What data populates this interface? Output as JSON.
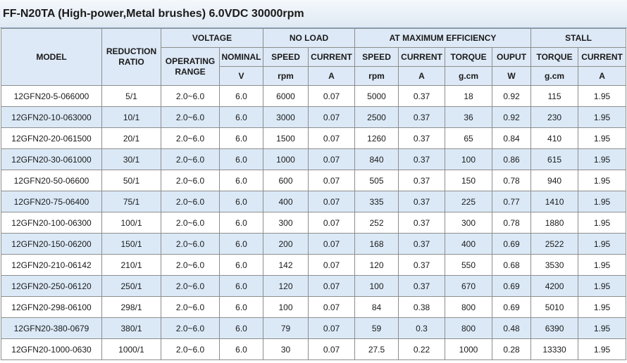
{
  "title": "FF-N20TA (High-power,Metal brushes)  6.0VDC  30000rpm",
  "header": {
    "model": "MODEL",
    "reduction_ratio": "REDUCTION RATIO",
    "voltage": "VOLTAGE",
    "no_load": "NO LOAD",
    "at_max_eff": "AT MAXIMUM EFFICIENCY",
    "stall": "STALL",
    "operating_range": "OPERATING RANGE",
    "nominal": "NOMINAL",
    "speed": "SPEED",
    "current": "CURRENT",
    "torque": "TORQUE",
    "output": "OUPUT",
    "unit_v": "V",
    "unit_rpm": "rpm",
    "unit_a": "A",
    "unit_gcm": "g.cm",
    "unit_w": "W"
  },
  "rows": [
    {
      "model": "12GFN20-5-066000",
      "ratio": "5/1",
      "range": "2.0~6.0",
      "nominal": "6.0",
      "nl_speed": "6000",
      "nl_current": "0.07",
      "me_speed": "5000",
      "me_current": "0.37",
      "me_torque": "18",
      "me_output": "0.92",
      "st_torque": "115",
      "st_current": "1.95"
    },
    {
      "model": "12GFN20-10-063000",
      "ratio": "10/1",
      "range": "2.0~6.0",
      "nominal": "6.0",
      "nl_speed": "3000",
      "nl_current": "0.07",
      "me_speed": "2500",
      "me_current": "0.37",
      "me_torque": "36",
      "me_output": "0.92",
      "st_torque": "230",
      "st_current": "1.95"
    },
    {
      "model": "12GFN20-20-061500",
      "ratio": "20/1",
      "range": "2.0~6.0",
      "nominal": "6.0",
      "nl_speed": "1500",
      "nl_current": "0.07",
      "me_speed": "1260",
      "me_current": "0.37",
      "me_torque": "65",
      "me_output": "0.84",
      "st_torque": "410",
      "st_current": "1.95"
    },
    {
      "model": "12GFN20-30-061000",
      "ratio": "30/1",
      "range": "2.0~6.0",
      "nominal": "6.0",
      "nl_speed": "1000",
      "nl_current": "0.07",
      "me_speed": "840",
      "me_current": "0.37",
      "me_torque": "100",
      "me_output": "0.86",
      "st_torque": "615",
      "st_current": "1.95"
    },
    {
      "model": "12GFN20-50-06600",
      "ratio": "50/1",
      "range": "2.0~6.0",
      "nominal": "6.0",
      "nl_speed": "600",
      "nl_current": "0.07",
      "me_speed": "505",
      "me_current": "0.37",
      "me_torque": "150",
      "me_output": "0.78",
      "st_torque": "940",
      "st_current": "1.95"
    },
    {
      "model": "12GFN20-75-06400",
      "ratio": "75/1",
      "range": "2.0~6.0",
      "nominal": "6.0",
      "nl_speed": "400",
      "nl_current": "0.07",
      "me_speed": "335",
      "me_current": "0.37",
      "me_torque": "225",
      "me_output": "0.77",
      "st_torque": "1410",
      "st_current": "1.95"
    },
    {
      "model": "12GFN20-100-06300",
      "ratio": "100/1",
      "range": "2.0~6.0",
      "nominal": "6.0",
      "nl_speed": "300",
      "nl_current": "0.07",
      "me_speed": "252",
      "me_current": "0.37",
      "me_torque": "300",
      "me_output": "0.78",
      "st_torque": "1880",
      "st_current": "1.95"
    },
    {
      "model": "12GFN20-150-06200",
      "ratio": "150/1",
      "range": "2.0~6.0",
      "nominal": "6.0",
      "nl_speed": "200",
      "nl_current": "0.07",
      "me_speed": "168",
      "me_current": "0.37",
      "me_torque": "400",
      "me_output": "0.69",
      "st_torque": "2522",
      "st_current": "1.95"
    },
    {
      "model": "12GFN20-210-06142",
      "ratio": "210/1",
      "range": "2.0~6.0",
      "nominal": "6.0",
      "nl_speed": "142",
      "nl_current": "0.07",
      "me_speed": "120",
      "me_current": "0.37",
      "me_torque": "550",
      "me_output": "0.68",
      "st_torque": "3530",
      "st_current": "1.95"
    },
    {
      "model": "12GFN20-250-06120",
      "ratio": "250/1",
      "range": "2.0~6.0",
      "nominal": "6.0",
      "nl_speed": "120",
      "nl_current": "0.07",
      "me_speed": "100",
      "me_current": "0.37",
      "me_torque": "670",
      "me_output": "0.69",
      "st_torque": "4200",
      "st_current": "1.95"
    },
    {
      "model": "12GFN20-298-06100",
      "ratio": "298/1",
      "range": "2.0~6.0",
      "nominal": "6.0",
      "nl_speed": "100",
      "nl_current": "0.07",
      "me_speed": "84",
      "me_current": "0.38",
      "me_torque": "800",
      "me_output": "0.69",
      "st_torque": "5010",
      "st_current": "1.95"
    },
    {
      "model": "12GFN20-380-0679",
      "ratio": "380/1",
      "range": "2.0~6.0",
      "nominal": "6.0",
      "nl_speed": "79",
      "nl_current": "0.07",
      "me_speed": "59",
      "me_current": "0.3",
      "me_torque": "800",
      "me_output": "0.48",
      "st_torque": "6390",
      "st_current": "1.95"
    },
    {
      "model": "12GFN20-1000-0630",
      "ratio": "1000/1",
      "range": "2.0~6.0",
      "nominal": "6.0",
      "nl_speed": "30",
      "nl_current": "0.07",
      "me_speed": "27.5",
      "me_current": "0.22",
      "me_torque": "1000",
      "me_output": "0.28",
      "st_torque": "13330",
      "st_current": "1.95"
    }
  ]
}
